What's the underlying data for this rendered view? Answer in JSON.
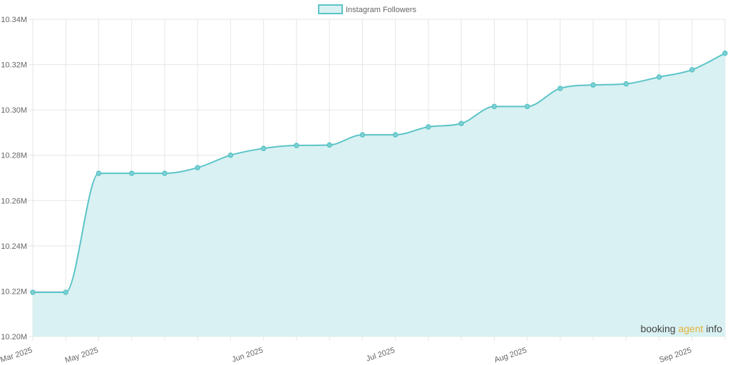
{
  "chart_data": {
    "type": "area",
    "title": "",
    "xlabel": "",
    "ylabel": "",
    "legend": {
      "position": "top",
      "entries": [
        "Instagram Followers"
      ]
    },
    "grid": true,
    "ylim": [
      10200000,
      10340000
    ],
    "y_ticks": [
      {
        "value": 10200000,
        "label": "10.20M"
      },
      {
        "value": 10220000,
        "label": "10.22M"
      },
      {
        "value": 10240000,
        "label": "10.24M"
      },
      {
        "value": 10260000,
        "label": "10.26M"
      },
      {
        "value": 10280000,
        "label": "10.28M"
      },
      {
        "value": 10300000,
        "label": "10.30M"
      },
      {
        "value": 10320000,
        "label": "10.32M"
      },
      {
        "value": 10340000,
        "label": "10.34M"
      }
    ],
    "x_tick_labels": [
      {
        "index": 0,
        "label": "Mar 2025"
      },
      {
        "index": 2,
        "label": "May 2025"
      },
      {
        "index": 7,
        "label": "Jun 2025"
      },
      {
        "index": 11,
        "label": "Jul 2025"
      },
      {
        "index": 15,
        "label": "Aug 2025"
      },
      {
        "index": 20,
        "label": "Sep 2025"
      }
    ],
    "series": [
      {
        "name": "Instagram Followers",
        "color": "#5bc4c8",
        "fill": "#d9f1f2",
        "values": [
          10219500,
          10219500,
          10272000,
          10272000,
          10272000,
          10274500,
          10280000,
          10283000,
          10284300,
          10284500,
          10289000,
          10289000,
          10292500,
          10294000,
          10301500,
          10301500,
          10309500,
          10311000,
          10311500,
          10314500,
          10317700,
          10325000
        ]
      }
    ]
  },
  "watermark": {
    "part1": "booking ",
    "part2": "agent",
    "part3": " info",
    "accent": "#e3b23c",
    "text_color": "#444444"
  }
}
